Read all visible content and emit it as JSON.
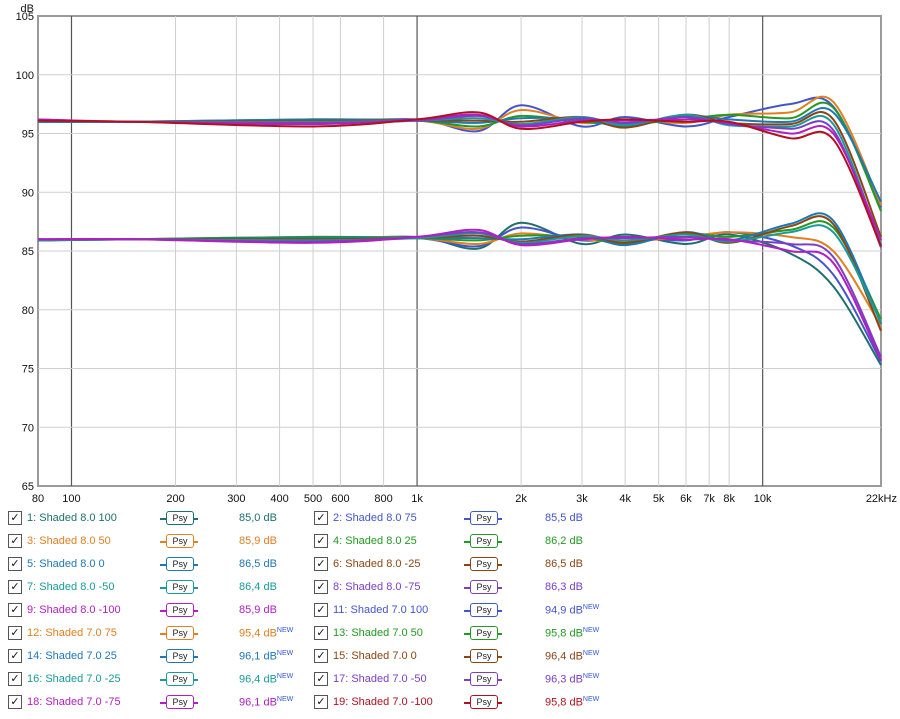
{
  "chart_data": {
    "type": "line",
    "title": "",
    "xlabel": "",
    "ylabel": "dB",
    "xscale": "log",
    "xlim": [
      80,
      22000
    ],
    "ylim": [
      65,
      105
    ],
    "grid": true,
    "x_ticks": [
      "80",
      "100",
      "200",
      "300",
      "400",
      "500",
      "600",
      "800",
      "1k",
      "2k",
      "3k",
      "4k",
      "5k",
      "6k",
      "7k",
      "8k",
      "10k",
      "22kHz"
    ],
    "y_ticks": [
      "105",
      "100",
      "95",
      "90",
      "85",
      "80",
      "75",
      "70",
      "65"
    ],
    "series": [
      {
        "name": "1: Shaded 8.0 100",
        "color": "#1f6f6f",
        "group": "low",
        "values": [
          [
            80,
            85.9
          ],
          [
            150,
            86.0
          ],
          [
            500,
            86.0
          ],
          [
            1000,
            86.2
          ],
          [
            1500,
            85.2
          ],
          [
            2000,
            87.4
          ],
          [
            3000,
            85.6
          ],
          [
            4000,
            86.4
          ],
          [
            6000,
            85.6
          ],
          [
            8000,
            86.4
          ],
          [
            12000,
            84.8
          ],
          [
            16000,
            82.0
          ],
          [
            22000,
            75.3
          ]
        ]
      },
      {
        "name": "2: Shaded 8.0 75",
        "color": "#4455cc",
        "group": "low",
        "values": [
          [
            80,
            86.0
          ],
          [
            150,
            86.0
          ],
          [
            500,
            86.1
          ],
          [
            1000,
            86.1
          ],
          [
            1500,
            85.4
          ],
          [
            2000,
            87.0
          ],
          [
            3000,
            85.9
          ],
          [
            4000,
            86.2
          ],
          [
            6000,
            85.9
          ],
          [
            8000,
            86.6
          ],
          [
            12000,
            85.5
          ],
          [
            16000,
            83.0
          ],
          [
            22000,
            75.6
          ]
        ]
      },
      {
        "name": "3: Shaded 8.0 50",
        "color": "#e08020",
        "group": "low",
        "values": [
          [
            80,
            85.9
          ],
          [
            150,
            86.0
          ],
          [
            500,
            86.2
          ],
          [
            1000,
            86.1
          ],
          [
            1500,
            85.6
          ],
          [
            2000,
            86.5
          ],
          [
            3000,
            86.0
          ],
          [
            4000,
            85.8
          ],
          [
            6000,
            86.2
          ],
          [
            8000,
            86.6
          ],
          [
            12000,
            86.2
          ],
          [
            16000,
            85.0
          ],
          [
            22000,
            78.6
          ]
        ]
      },
      {
        "name": "4: Shaded 8.0 25",
        "color": "#229922",
        "group": "low",
        "values": [
          [
            80,
            85.9
          ],
          [
            150,
            86.0
          ],
          [
            500,
            86.2
          ],
          [
            1000,
            86.1
          ],
          [
            1500,
            85.9
          ],
          [
            2000,
            86.3
          ],
          [
            3000,
            86.2
          ],
          [
            4000,
            85.6
          ],
          [
            6000,
            86.5
          ],
          [
            8000,
            86.2
          ],
          [
            12000,
            86.8
          ],
          [
            16000,
            87.0
          ],
          [
            22000,
            79.2
          ]
        ]
      },
      {
        "name": "5: Shaded 8.0 0",
        "color": "#1f77b4",
        "group": "low",
        "values": [
          [
            80,
            85.9
          ],
          [
            150,
            86.0
          ],
          [
            500,
            86.1
          ],
          [
            1000,
            86.1
          ],
          [
            1500,
            86.1
          ],
          [
            2000,
            86.0
          ],
          [
            3000,
            86.4
          ],
          [
            4000,
            85.5
          ],
          [
            6000,
            86.6
          ],
          [
            8000,
            85.9
          ],
          [
            12000,
            87.3
          ],
          [
            16000,
            87.6
          ],
          [
            22000,
            78.8
          ]
        ]
      },
      {
        "name": "6: Shaded 8.0 -25",
        "color": "#8b4513",
        "group": "low",
        "values": [
          [
            80,
            85.9
          ],
          [
            150,
            86.0
          ],
          [
            500,
            86.0
          ],
          [
            1000,
            86.1
          ],
          [
            1500,
            86.3
          ],
          [
            2000,
            85.8
          ],
          [
            3000,
            86.4
          ],
          [
            4000,
            85.7
          ],
          [
            6000,
            86.6
          ],
          [
            8000,
            85.7
          ],
          [
            12000,
            87.1
          ],
          [
            16000,
            87.3
          ],
          [
            22000,
            78.2
          ]
        ]
      },
      {
        "name": "7: Shaded 8.0 -50",
        "color": "#1a9a9a",
        "group": "low",
        "values": [
          [
            80,
            85.9
          ],
          [
            150,
            86.0
          ],
          [
            500,
            85.9
          ],
          [
            1000,
            86.1
          ],
          [
            1500,
            86.5
          ],
          [
            2000,
            85.7
          ],
          [
            3000,
            86.3
          ],
          [
            4000,
            85.9
          ],
          [
            6000,
            86.4
          ],
          [
            8000,
            85.8
          ],
          [
            12000,
            86.6
          ],
          [
            16000,
            86.6
          ],
          [
            22000,
            78.9
          ]
        ]
      },
      {
        "name": "8: Shaded 8.0 -75",
        "color": "#7b3fc4",
        "group": "low",
        "values": [
          [
            80,
            86.0
          ],
          [
            150,
            86.0
          ],
          [
            500,
            85.8
          ],
          [
            1000,
            86.2
          ],
          [
            1500,
            86.6
          ],
          [
            2000,
            85.6
          ],
          [
            3000,
            86.1
          ],
          [
            4000,
            86.1
          ],
          [
            6000,
            86.2
          ],
          [
            8000,
            85.9
          ],
          [
            12000,
            85.6
          ],
          [
            16000,
            84.5
          ],
          [
            22000,
            76.0
          ]
        ]
      },
      {
        "name": "9: Shaded 8.0 -100",
        "color": "#b020c0",
        "group": "low",
        "values": [
          [
            80,
            86.0
          ],
          [
            150,
            86.0
          ],
          [
            500,
            85.7
          ],
          [
            1000,
            86.2
          ],
          [
            1500,
            86.8
          ],
          [
            2000,
            85.5
          ],
          [
            3000,
            86.0
          ],
          [
            4000,
            86.2
          ],
          [
            6000,
            86.0
          ],
          [
            8000,
            86.0
          ],
          [
            12000,
            85.0
          ],
          [
            16000,
            84.0
          ],
          [
            22000,
            75.7
          ]
        ]
      },
      {
        "name": "11: Shaded 7.0 100",
        "color": "#4455cc",
        "group": "high",
        "values": [
          [
            80,
            96.0
          ],
          [
            150,
            96.0
          ],
          [
            500,
            96.0
          ],
          [
            1000,
            96.2
          ],
          [
            1500,
            95.2
          ],
          [
            2000,
            97.4
          ],
          [
            3000,
            95.6
          ],
          [
            4000,
            96.4
          ],
          [
            6000,
            95.6
          ],
          [
            8000,
            96.4
          ],
          [
            12000,
            97.5
          ],
          [
            16000,
            97.3
          ],
          [
            22000,
            88.7
          ]
        ]
      },
      {
        "name": "12: Shaded 7.0 75",
        "color": "#e08020",
        "group": "high",
        "values": [
          [
            80,
            96.0
          ],
          [
            150,
            96.0
          ],
          [
            500,
            96.1
          ],
          [
            1000,
            96.1
          ],
          [
            1500,
            95.4
          ],
          [
            2000,
            97.0
          ],
          [
            3000,
            95.9
          ],
          [
            4000,
            96.2
          ],
          [
            6000,
            95.9
          ],
          [
            8000,
            96.6
          ],
          [
            12000,
            96.8
          ],
          [
            16000,
            97.7
          ],
          [
            22000,
            88.9
          ]
        ]
      },
      {
        "name": "13: Shaded 7.0 50",
        "color": "#229922",
        "group": "high",
        "values": [
          [
            80,
            96.0
          ],
          [
            150,
            96.0
          ],
          [
            500,
            96.2
          ],
          [
            1000,
            96.1
          ],
          [
            1500,
            95.6
          ],
          [
            2000,
            96.5
          ],
          [
            3000,
            96.0
          ],
          [
            4000,
            95.8
          ],
          [
            6000,
            96.2
          ],
          [
            8000,
            96.6
          ],
          [
            12000,
            96.3
          ],
          [
            16000,
            97.2
          ],
          [
            22000,
            88.4
          ]
        ]
      },
      {
        "name": "14: Shaded 7.0 25",
        "color": "#1f77b4",
        "group": "high",
        "values": [
          [
            80,
            96.0
          ],
          [
            150,
            96.0
          ],
          [
            500,
            96.2
          ],
          [
            1000,
            96.1
          ],
          [
            1500,
            95.9
          ],
          [
            2000,
            96.3
          ],
          [
            3000,
            96.2
          ],
          [
            4000,
            95.6
          ],
          [
            6000,
            96.5
          ],
          [
            8000,
            96.2
          ],
          [
            12000,
            96.0
          ],
          [
            16000,
            96.8
          ],
          [
            22000,
            89.2
          ]
        ]
      },
      {
        "name": "15: Shaded 7.0 0",
        "color": "#8b4513",
        "group": "high",
        "values": [
          [
            80,
            96.1
          ],
          [
            150,
            96.0
          ],
          [
            500,
            96.1
          ],
          [
            1000,
            96.1
          ],
          [
            1500,
            96.1
          ],
          [
            2000,
            96.0
          ],
          [
            3000,
            96.4
          ],
          [
            4000,
            95.5
          ],
          [
            6000,
            96.6
          ],
          [
            8000,
            95.9
          ],
          [
            12000,
            95.8
          ],
          [
            16000,
            96.2
          ],
          [
            22000,
            86.2
          ]
        ]
      },
      {
        "name": "16: Shaded 7.0 -25",
        "color": "#1a9a9a",
        "group": "high",
        "values": [
          [
            80,
            96.1
          ],
          [
            150,
            96.0
          ],
          [
            500,
            96.0
          ],
          [
            1000,
            96.1
          ],
          [
            1500,
            96.3
          ],
          [
            2000,
            95.8
          ],
          [
            3000,
            96.4
          ],
          [
            4000,
            95.7
          ],
          [
            6000,
            96.6
          ],
          [
            8000,
            95.7
          ],
          [
            12000,
            95.6
          ],
          [
            16000,
            95.8
          ],
          [
            22000,
            85.5
          ]
        ]
      },
      {
        "name": "17: Shaded 7.0 -50",
        "color": "#7b3fc4",
        "group": "high",
        "values": [
          [
            80,
            96.1
          ],
          [
            150,
            96.0
          ],
          [
            500,
            95.9
          ],
          [
            1000,
            96.1
          ],
          [
            1500,
            96.5
          ],
          [
            2000,
            95.7
          ],
          [
            3000,
            96.3
          ],
          [
            4000,
            95.9
          ],
          [
            6000,
            96.4
          ],
          [
            8000,
            95.8
          ],
          [
            12000,
            95.4
          ],
          [
            16000,
            95.3
          ],
          [
            22000,
            85.3
          ]
        ]
      },
      {
        "name": "18: Shaded 7.0 -75",
        "color": "#b020c0",
        "group": "high",
        "values": [
          [
            80,
            96.2
          ],
          [
            150,
            96.0
          ],
          [
            500,
            95.8
          ],
          [
            1000,
            96.2
          ],
          [
            1500,
            96.6
          ],
          [
            2000,
            95.6
          ],
          [
            3000,
            96.1
          ],
          [
            4000,
            96.1
          ],
          [
            6000,
            96.2
          ],
          [
            8000,
            95.9
          ],
          [
            12000,
            95.0
          ],
          [
            16000,
            95.0
          ],
          [
            22000,
            85.9
          ]
        ]
      },
      {
        "name": "19: Shaded 7.0 -100",
        "color": "#b01020",
        "group": "high",
        "values": [
          [
            80,
            96.1
          ],
          [
            150,
            96.0
          ],
          [
            500,
            95.6
          ],
          [
            1000,
            96.2
          ],
          [
            1500,
            96.8
          ],
          [
            2000,
            95.4
          ],
          [
            3000,
            96.0
          ],
          [
            4000,
            96.2
          ],
          [
            6000,
            96.0
          ],
          [
            8000,
            96.0
          ],
          [
            12000,
            94.6
          ],
          [
            16000,
            94.5
          ],
          [
            22000,
            85.4
          ]
        ]
      }
    ]
  },
  "legend": [
    [
      {
        "label": "1: Shaded 8.0 100",
        "color": "#1f6f6f",
        "value": "85,0 dB",
        "new": "",
        "psy": "Psy"
      },
      {
        "label": "2: Shaded 8.0 75",
        "color": "#4455cc",
        "value": "85,5 dB",
        "new": "",
        "psy": "Psy"
      }
    ],
    [
      {
        "label": "3: Shaded 8.0 50",
        "color": "#e08020",
        "value": "85,9 dB",
        "new": "",
        "psy": "Psy"
      },
      {
        "label": "4: Shaded 8.0 25",
        "color": "#229922",
        "value": "86,2 dB",
        "new": "",
        "psy": "Psy"
      }
    ],
    [
      {
        "label": "5: Shaded 8.0 0",
        "color": "#1f77b4",
        "value": "86,5 dB",
        "new": "",
        "psy": "Psy"
      },
      {
        "label": "6: Shaded 8.0 -25",
        "color": "#8b4513",
        "value": "86,5 dB",
        "new": "",
        "psy": "Psy"
      }
    ],
    [
      {
        "label": "7: Shaded 8.0 -50",
        "color": "#1a9a9a",
        "value": "86,4 dB",
        "new": "",
        "psy": "Psy"
      },
      {
        "label": "8: Shaded 8.0 -75",
        "color": "#7b3fc4",
        "value": "86,3 dB",
        "new": "",
        "psy": "Psy"
      }
    ],
    [
      {
        "label": "9: Shaded 8.0 -100",
        "color": "#b020c0",
        "value": "85,9 dB",
        "new": "",
        "psy": "Psy"
      },
      {
        "label": "11: Shaded 7.0 100",
        "color": "#4455cc",
        "value": "94,9 dB",
        "new": "NEW",
        "psy": "Psy"
      }
    ],
    [
      {
        "label": "12: Shaded 7.0 75",
        "color": "#e08020",
        "value": "95,4 dB",
        "new": "NEW",
        "psy": "Psy"
      },
      {
        "label": "13: Shaded 7.0 50",
        "color": "#229922",
        "value": "95,8 dB",
        "new": "NEW",
        "psy": "Psy"
      }
    ],
    [
      {
        "label": "14: Shaded 7.0 25",
        "color": "#1f77b4",
        "value": "96,1 dB",
        "new": "NEW",
        "psy": "Psy"
      },
      {
        "label": "15: Shaded 7.0 0",
        "color": "#8b4513",
        "value": "96,4 dB",
        "new": "NEW",
        "psy": "Psy"
      }
    ],
    [
      {
        "label": "16: Shaded 7.0 -25",
        "color": "#1a9a9a",
        "value": "96,4 dB",
        "new": "NEW",
        "psy": "Psy"
      },
      {
        "label": "17: Shaded 7.0 -50",
        "color": "#7b3fc4",
        "value": "96,3 dB",
        "new": "NEW",
        "psy": "Psy"
      }
    ],
    [
      {
        "label": "18: Shaded 7.0 -75",
        "color": "#b020c0",
        "value": "96,1 dB",
        "new": "NEW",
        "psy": "Psy"
      },
      {
        "label": "19: Shaded 7.0 -100",
        "color": "#b01020",
        "value": "95,8 dB",
        "new": "NEW",
        "psy": "Psy"
      }
    ]
  ],
  "checkbox_glyph": "✓"
}
